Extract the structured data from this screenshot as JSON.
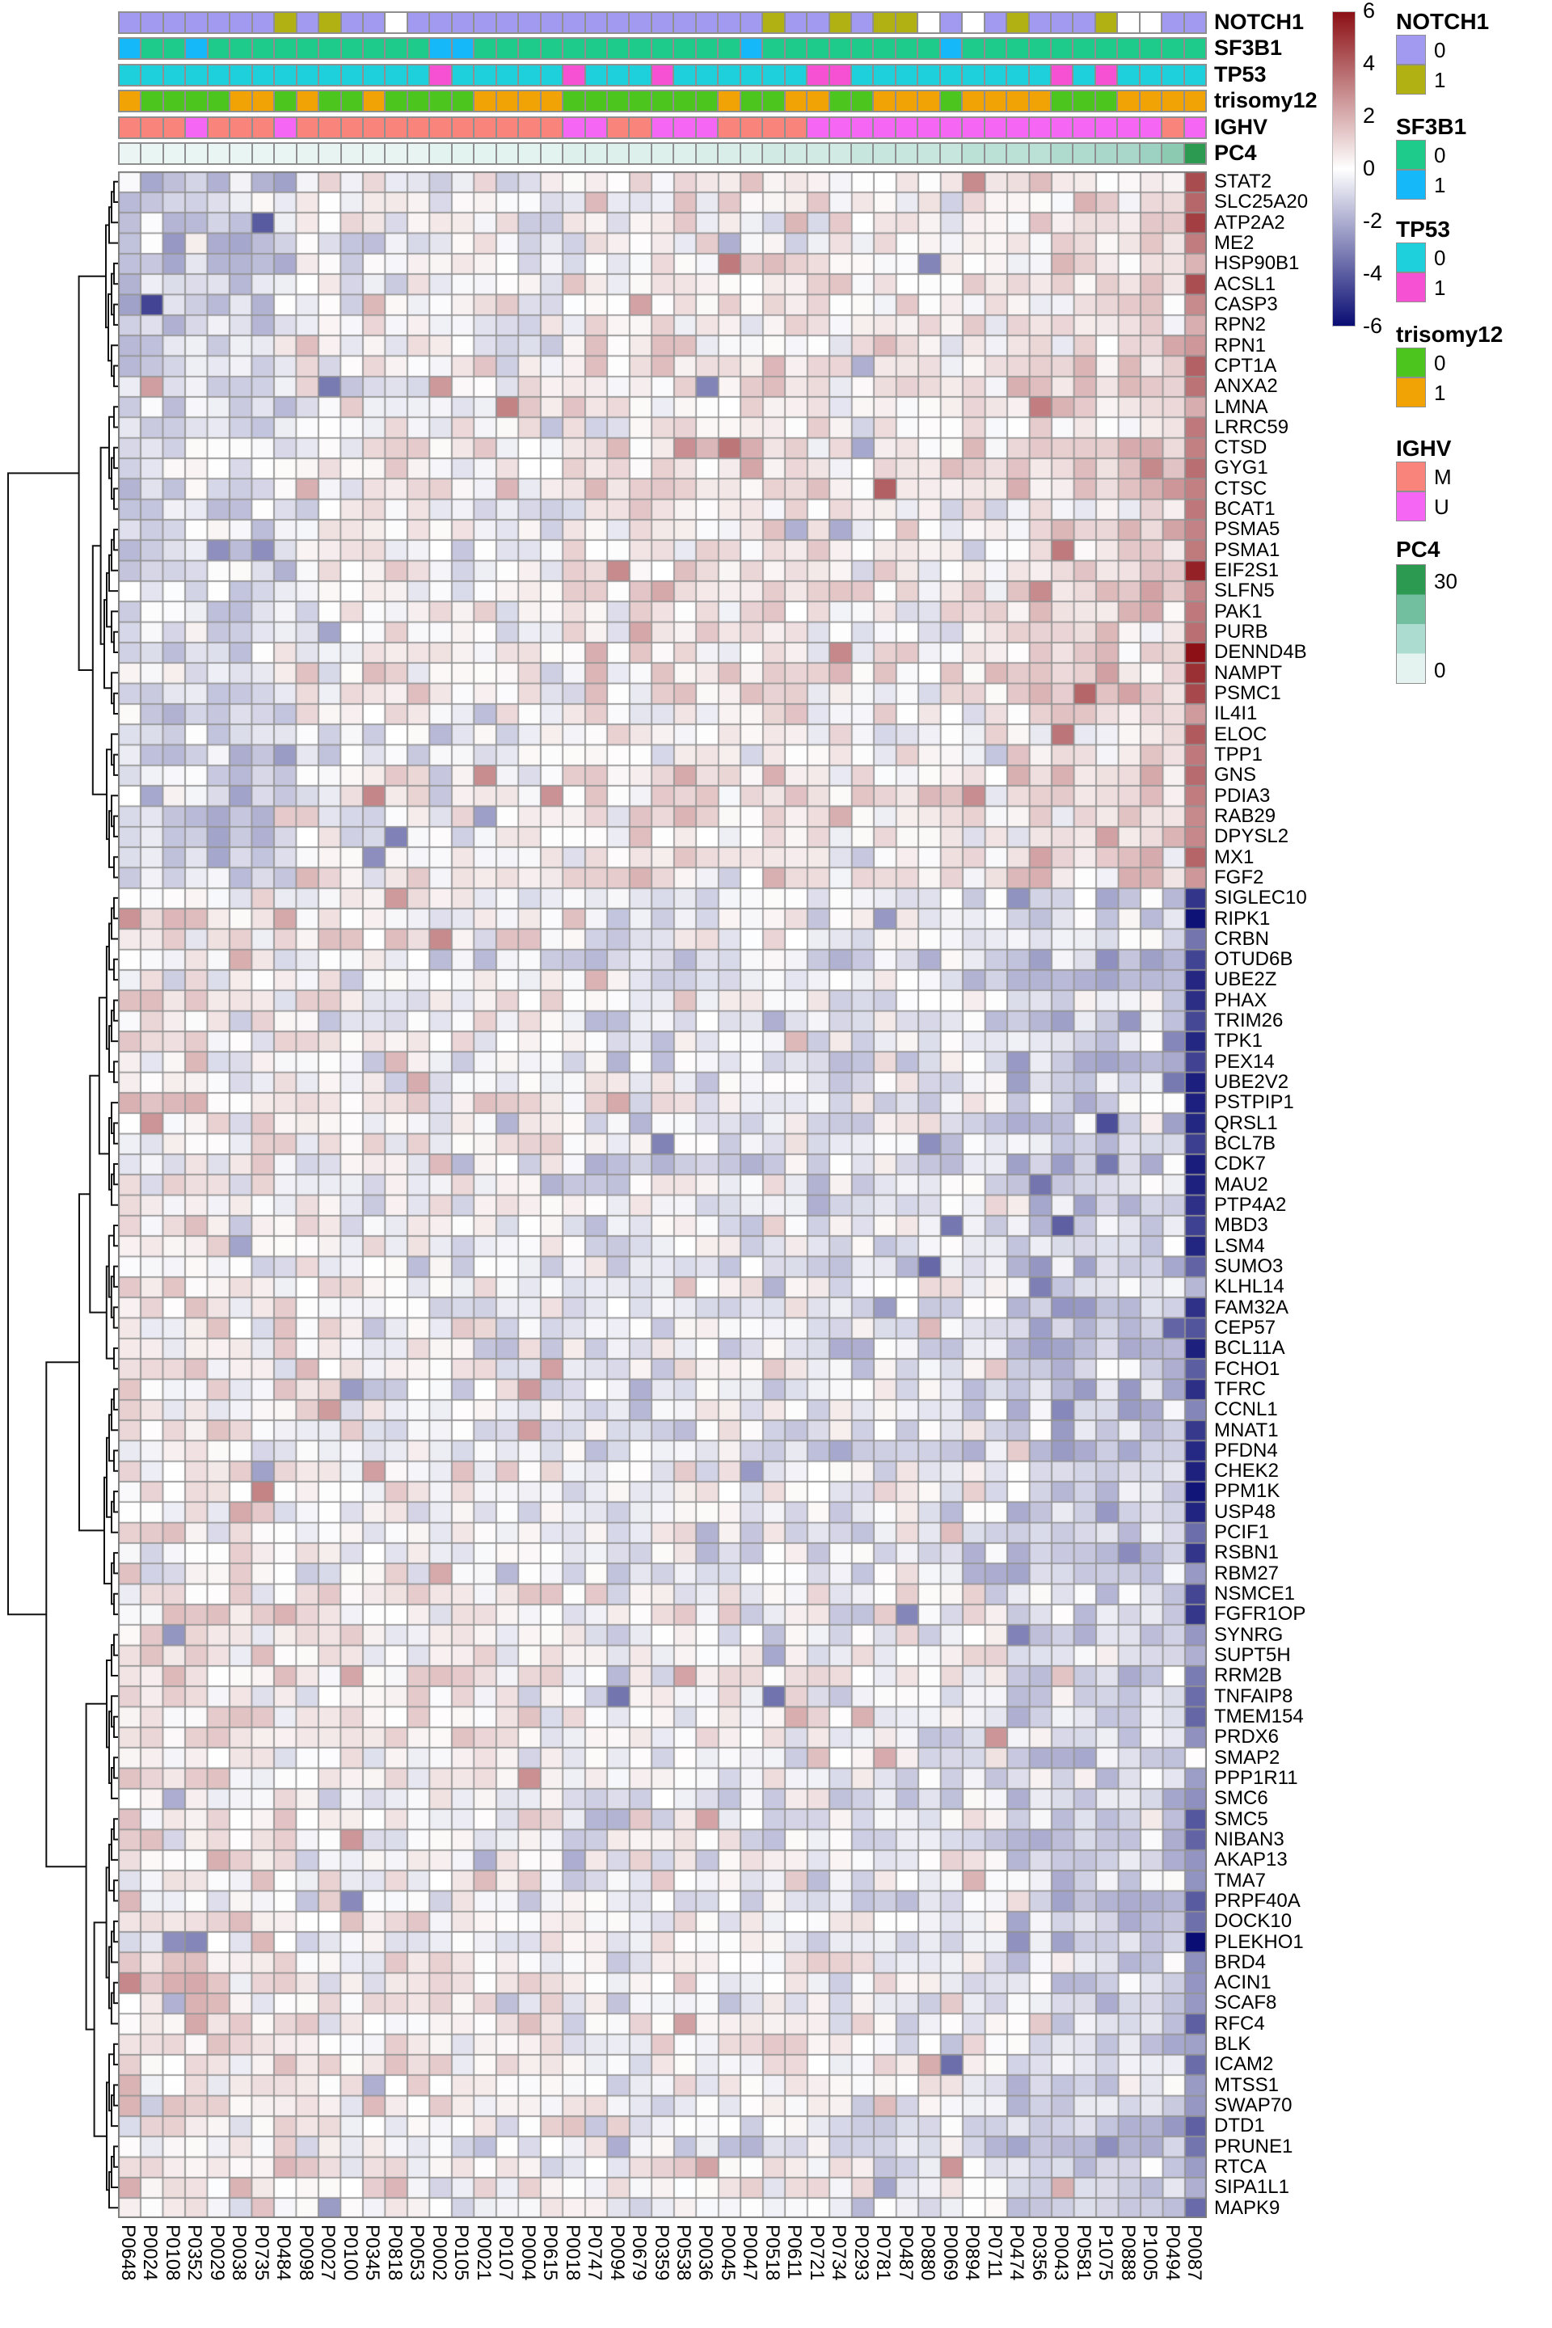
{
  "chart_data": {
    "type": "heatmap",
    "title": "",
    "xlabel": "",
    "ylabel": "",
    "legend_position": "right",
    "grid": true,
    "note": "Clustered gene-expression heatmap (z-score scale -6..6); individual cell values are approximated from the image via the generative pattern below.",
    "rows": [
      "STAT2",
      "SLC25A20",
      "ATP2A2",
      "ME2",
      "HSP90B1",
      "ACSL1",
      "CASP3",
      "RPN2",
      "RPN1",
      "CPT1A",
      "ANXA2",
      "LMNA",
      "LRRC59",
      "CTSD",
      "GYG1",
      "CTSC",
      "BCAT1",
      "PSMA5",
      "PSMA1",
      "EIF2S1",
      "SLFN5",
      "PAK1",
      "PURB",
      "DENND4B",
      "NAMPT",
      "PSMC1",
      "IL4I1",
      "ELOC",
      "TPP1",
      "GNS",
      "PDIA3",
      "RAB29",
      "DPYSL2",
      "MX1",
      "FGF2",
      "SIGLEC10",
      "RIPK1",
      "CRBN",
      "OTUD6B",
      "UBE2Z",
      "PHAX",
      "TRIM26",
      "TPK1",
      "PEX14",
      "UBE2V2",
      "PSTPIP1",
      "QRSL1",
      "BCL7B",
      "CDK7",
      "MAU2",
      "PTP4A2",
      "MBD3",
      "LSM4",
      "SUMO3",
      "KLHL14",
      "FAM32A",
      "CEP57",
      "BCL11A",
      "FCHO1",
      "TFRC",
      "CCNL1",
      "MNAT1",
      "PFDN4",
      "CHEK2",
      "PPM1K",
      "USP48",
      "PCIF1",
      "RSBN1",
      "RBM27",
      "NSMCE1",
      "FGFR1OP",
      "SYNRG",
      "SUPT5H",
      "RRM2B",
      "TNFAIP8",
      "TMEM154",
      "PRDX6",
      "SMAP2",
      "PPP1R11",
      "SMC6",
      "SMC5",
      "NIBAN3",
      "AKAP13",
      "TMA7",
      "PRPF40A",
      "DOCK10",
      "PLEKHO1",
      "BRD4",
      "ACIN1",
      "SCAF8",
      "RFC4",
      "BLK",
      "ICAM2",
      "MTSS1",
      "SWAP70",
      "DTD1",
      "PRUNE1",
      "RTCA",
      "SIPA1L1",
      "MAPK9"
    ],
    "columns": [
      "P0648",
      "P0024",
      "P0108",
      "P0352",
      "P0029",
      "P0038",
      "P0735",
      "P0484",
      "P0098",
      "P0027",
      "P0100",
      "P0345",
      "P0818",
      "P0053",
      "P0002",
      "P0105",
      "P0021",
      "P0107",
      "P0004",
      "P0615",
      "P0018",
      "P0747",
      "P0094",
      "P0679",
      "P0359",
      "P0538",
      "P0036",
      "P0045",
      "P0047",
      "P0518",
      "P0611",
      "P0721",
      "P0734",
      "P0293",
      "P0781",
      "P0487",
      "P0880",
      "P0069",
      "P0894",
      "P0711",
      "P0474",
      "P0356",
      "P0043",
      "P0581",
      "P1075",
      "P0888",
      "P1005",
      "P0494",
      "P0087"
    ],
    "row_clusters": {
      "top_block_size": 35,
      "bottom_block_size": 65
    },
    "value_scale": {
      "min": -6,
      "max": 6,
      "tick_labels": [
        "6",
        "4",
        "2",
        "0",
        "-2",
        "-4",
        "-6"
      ],
      "positive_color": "#8c1015",
      "zero_color": "#ffffff",
      "negative_color": "#0a0d73"
    },
    "column_annotations": {
      "order": [
        "NOTCH1",
        "SF3B1",
        "TP53",
        "trisomy12",
        "IGHV",
        "PC4"
      ],
      "NOTCH1": [
        "0",
        "0",
        "0",
        "0",
        "0",
        "0",
        "0",
        "1",
        "0",
        "1",
        "0",
        "0",
        "NA",
        "0",
        "0",
        "0",
        "0",
        "0",
        "0",
        "0",
        "0",
        "0",
        "0",
        "0",
        "0",
        "0",
        "0",
        "0",
        "0",
        "1",
        "0",
        "0",
        "1",
        "0",
        "1",
        "1",
        "NA",
        "0",
        "NA",
        "0",
        "1",
        "0",
        "0",
        "0",
        "1",
        "NA",
        "NA",
        "0",
        "0"
      ],
      "SF3B1": [
        "1",
        "0",
        "0",
        "1",
        "0",
        "0",
        "0",
        "0",
        "0",
        "0",
        "0",
        "0",
        "0",
        "0",
        "1",
        "1",
        "0",
        "0",
        "0",
        "0",
        "0",
        "0",
        "0",
        "0",
        "0",
        "0",
        "0",
        "0",
        "1",
        "0",
        "0",
        "0",
        "0",
        "0",
        "0",
        "0",
        "0",
        "1",
        "0",
        "0",
        "0",
        "0",
        "0",
        "0",
        "0",
        "0",
        "0",
        "0",
        "0"
      ],
      "TP53": [
        "0",
        "0",
        "0",
        "0",
        "0",
        "0",
        "0",
        "0",
        "0",
        "0",
        "0",
        "0",
        "0",
        "0",
        "1",
        "0",
        "0",
        "0",
        "0",
        "0",
        "1",
        "0",
        "0",
        "0",
        "1",
        "0",
        "0",
        "0",
        "0",
        "0",
        "0",
        "1",
        "1",
        "0",
        "0",
        "0",
        "0",
        "0",
        "0",
        "0",
        "0",
        "0",
        "1",
        "0",
        "1",
        "0",
        "0",
        "0",
        "0"
      ],
      "trisomy12": [
        "1",
        "0",
        "0",
        "0",
        "0",
        "1",
        "1",
        "0",
        "1",
        "0",
        "0",
        "1",
        "0",
        "0",
        "0",
        "0",
        "1",
        "1",
        "1",
        "1",
        "0",
        "0",
        "0",
        "0",
        "0",
        "0",
        "0",
        "1",
        "0",
        "0",
        "1",
        "1",
        "0",
        "0",
        "1",
        "1",
        "1",
        "0",
        "1",
        "1",
        "1",
        "1",
        "0",
        "0",
        "0",
        "1",
        "1",
        "1",
        "1"
      ],
      "IGHV": [
        "M",
        "M",
        "M",
        "U",
        "M",
        "M",
        "M",
        "U",
        "M",
        "M",
        "M",
        "M",
        "M",
        "M",
        "M",
        "M",
        "M",
        "M",
        "M",
        "M",
        "U",
        "U",
        "M",
        "M",
        "U",
        "U",
        "U",
        "M",
        "M",
        "M",
        "M",
        "U",
        "U",
        "U",
        "U",
        "U",
        "U",
        "U",
        "U",
        "U",
        "U",
        "U",
        "U",
        "U",
        "U",
        "U",
        "U",
        "M",
        "U"
      ],
      "PC4": [
        0.5,
        1,
        1,
        1,
        1,
        1,
        1,
        1,
        1.5,
        1.5,
        1.5,
        1.5,
        1.5,
        1.5,
        2.5,
        2.5,
        2.5,
        2.5,
        2.5,
        2.5,
        4,
        4,
        4,
        4,
        4,
        4,
        5,
        5,
        5,
        7,
        7,
        7,
        7,
        9,
        9,
        9,
        9,
        9,
        11,
        11,
        11,
        11,
        13,
        13,
        14,
        14,
        16,
        18,
        30
      ]
    },
    "annotation_colors": {
      "NOTCH1": {
        "0": "#a29af0",
        "1": "#b1b113",
        "NA": "#ffffff"
      },
      "SF3B1": {
        "0": "#1ecb8b",
        "1": "#15b9fa"
      },
      "TP53": {
        "0": "#1ecfdc",
        "1": "#f751d3"
      },
      "trisomy12": {
        "0": "#4cc61e",
        "1": "#f1a204"
      },
      "IGHV": {
        "M": "#f9847b",
        "U": "#f566f5"
      },
      "PC4": {
        "stops": [
          [
            0,
            "#edf7f5"
          ],
          [
            8,
            "#cde9e2"
          ],
          [
            16,
            "#9dd2c2"
          ],
          [
            24,
            "#5bb183"
          ],
          [
            30,
            "#2d9a52"
          ]
        ]
      }
    },
    "legends": [
      {
        "title": "NOTCH1",
        "entries": [
          {
            "label": "0",
            "color": "#a29af0"
          },
          {
            "label": "1",
            "color": "#b1b113"
          }
        ]
      },
      {
        "title": "SF3B1",
        "entries": [
          {
            "label": "0",
            "color": "#1ecb8b"
          },
          {
            "label": "1",
            "color": "#15b9fa"
          }
        ]
      },
      {
        "title": "TP53",
        "entries": [
          {
            "label": "0",
            "color": "#1ecfdc"
          },
          {
            "label": "1",
            "color": "#f751d3"
          }
        ]
      },
      {
        "title": "trisomy12",
        "entries": [
          {
            "label": "0",
            "color": "#4cc61e"
          },
          {
            "label": "1",
            "color": "#f1a204"
          }
        ]
      },
      {
        "title": "IGHV",
        "entries": [
          {
            "label": "M",
            "color": "#f9847b"
          },
          {
            "label": "U",
            "color": "#f566f5"
          }
        ]
      },
      {
        "title": "PC4",
        "type": "gradient",
        "top_label": "30",
        "bottom_label": "0",
        "colors": [
          "#2d9a52",
          "#71bf9e",
          "#abdccf",
          "#e4f3f0"
        ]
      }
    ],
    "approx_pattern": {
      "top_block": {
        "rows": [
          0,
          34
        ],
        "col_means": [
          [
            0,
            7,
            -0.85
          ],
          [
            8,
            19,
            0.05
          ],
          [
            20,
            39,
            0.45
          ],
          [
            40,
            47,
            0.95
          ],
          [
            48,
            48,
            3.4
          ]
        ]
      },
      "bottom_block": {
        "rows": [
          35,
          99
        ],
        "col_means": [
          [
            0,
            7,
            0.45
          ],
          [
            8,
            19,
            0.15
          ],
          [
            20,
            39,
            -0.35
          ],
          [
            40,
            47,
            -1.15
          ],
          [
            48,
            48,
            -2.8
          ]
        ],
        "last_col_rows_35_70": -4.8
      },
      "noise": 1.6,
      "highlights": [
        [
          "DENND4B",
          "P0087",
          6
        ],
        [
          "NAMPT",
          "P0087",
          5.2
        ],
        [
          "PSMC1",
          "P0087",
          4.6
        ],
        [
          "CASP3",
          "P0024",
          -4.6
        ],
        [
          "RIPK1",
          "P0087",
          -5.9
        ],
        [
          "SIGLEC10",
          "P0087",
          -5.0
        ],
        [
          "CDK7",
          "P0087",
          -5.6
        ],
        [
          "PPM1K",
          "P0087",
          -5.8
        ],
        [
          "PLEKHO1",
          "P0087",
          -6
        ],
        [
          "MX1",
          "P0345",
          -2.8
        ]
      ]
    }
  }
}
